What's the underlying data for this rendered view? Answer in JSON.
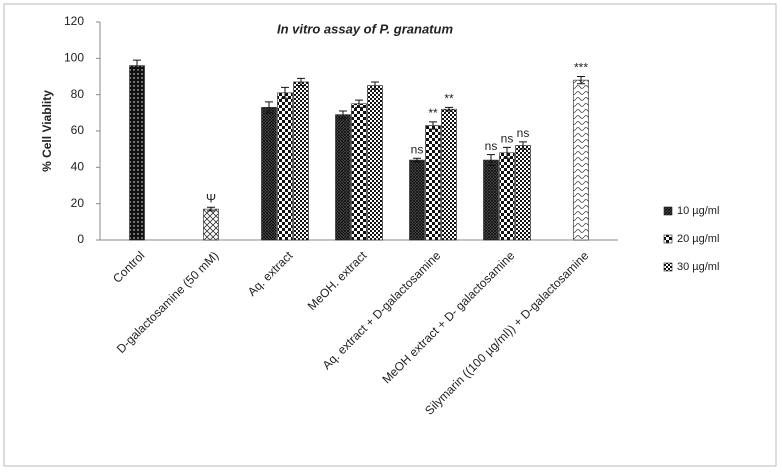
{
  "chart_data": {
    "type": "bar",
    "title": "In vitro assay of P. granatum",
    "y_label": "% Cell Viablity",
    "categories": [
      "Control",
      "D-galactosamine (50 mM)",
      "Aq. extract",
      "MeOH. extract",
      "Aq. extract + D-galactosamine",
      "MeOH extract + D- galactosamine",
      "Silymarin ((100 µg/ml)) + D-galactosamine"
    ],
    "bars": {
      "values": [
        96,
        17,
        null,
        null,
        null,
        null,
        88
      ],
      "errors": [
        3,
        1,
        null,
        null,
        null,
        null,
        2
      ],
      "annotations": [
        null,
        "Ψ",
        null,
        null,
        null,
        null,
        "***"
      ]
    },
    "series": [
      {
        "name": "10 µg/ml",
        "values": [
          null,
          null,
          73,
          69,
          44,
          44,
          null
        ],
        "errors": [
          null,
          null,
          3,
          2,
          1,
          3,
          null
        ],
        "annotations": [
          null,
          null,
          null,
          null,
          "ns",
          "ns",
          null
        ]
      },
      {
        "name": "20 µg/ml",
        "values": [
          null,
          null,
          81,
          75,
          63,
          48,
          null
        ],
        "errors": [
          null,
          null,
          3,
          2,
          2,
          3,
          null
        ],
        "annotations": [
          null,
          null,
          null,
          null,
          "**",
          "ns",
          null
        ]
      },
      {
        "name": "30 µg/ml",
        "values": [
          null,
          null,
          87,
          85,
          72,
          52,
          null
        ],
        "errors": [
          null,
          null,
          2,
          2,
          1,
          2,
          null
        ],
        "annotations": [
          null,
          null,
          null,
          null,
          "**",
          "ns",
          null
        ]
      }
    ],
    "ylim": [
      0,
      120
    ],
    "yticks": [
      0,
      20,
      40,
      60,
      80,
      100,
      120
    ],
    "grid": false,
    "legend": "right"
  }
}
